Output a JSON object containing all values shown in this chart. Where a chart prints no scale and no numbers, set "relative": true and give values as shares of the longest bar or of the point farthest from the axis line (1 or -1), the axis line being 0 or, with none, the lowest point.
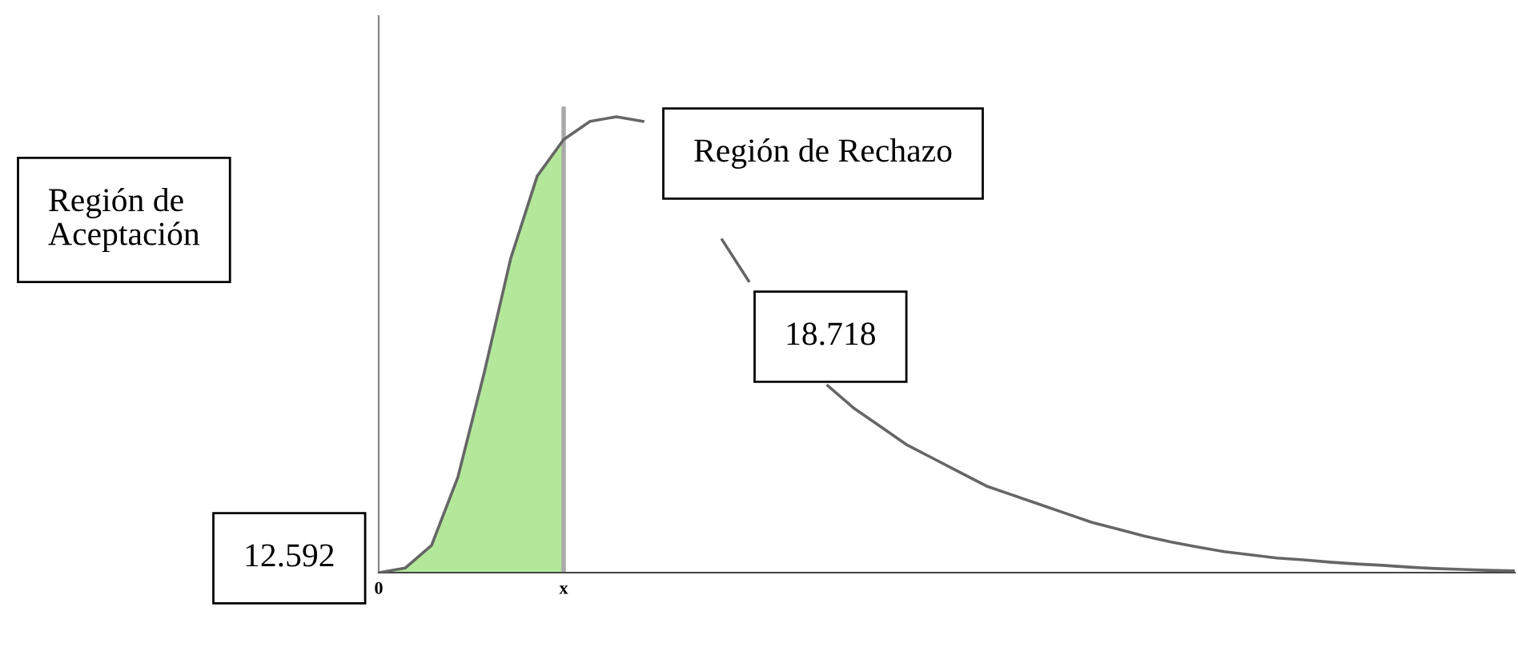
{
  "chart_data": {
    "type": "line",
    "relative": true,
    "categories": [
      "0",
      null,
      null,
      null,
      null,
      null,
      null,
      "x",
      null,
      null,
      null,
      null,
      null,
      null,
      null,
      null,
      null,
      null,
      null,
      null,
      null,
      null,
      null,
      null,
      null,
      null,
      null,
      null,
      null,
      null,
      null,
      null,
      null,
      null,
      null,
      null,
      null,
      null,
      null,
      null,
      null,
      null,
      null,
      null
    ],
    "series": [
      {
        "type": "area",
        "color": "#b3e89a",
        "values": [
          0,
          0.01,
          0.06,
          0.21,
          0.44,
          0.69,
          0.87,
          0.95,
          null,
          null,
          null,
          null,
          null,
          null,
          null,
          null,
          null,
          null,
          null,
          null,
          null,
          null,
          null,
          null,
          null,
          null,
          null,
          null,
          null,
          null,
          null,
          null,
          null,
          null,
          null,
          null,
          null,
          null,
          null,
          null,
          null,
          null,
          null,
          null
        ]
      },
      {
        "color": "#666666",
        "values": [
          0,
          0.01,
          0.06,
          0.21,
          0.44,
          0.69,
          0.87,
          0.95,
          0.99,
          1.0,
          0.99,
          null,
          null,
          0.73,
          0.64,
          null,
          null,
          0.41,
          0.36,
          0.32,
          0.28,
          0.25,
          0.22,
          0.19,
          0.17,
          0.15,
          0.13,
          0.11,
          0.095,
          0.08,
          0.067,
          0.056,
          0.046,
          0.039,
          0.032,
          0.028,
          0.023,
          0.019,
          0.016,
          0.012,
          0.009,
          0.007,
          0.005,
          0.004
        ]
      }
    ],
    "ref_lines": [
      {
        "axis": "x",
        "value": "x",
        "color": "#aaaaaa"
      }
    ],
    "annotations": [
      "Región de\nAceptación",
      "Región de Rechazo",
      "18.718",
      "12.592"
    ],
    "legend": false,
    "grid": false
  }
}
